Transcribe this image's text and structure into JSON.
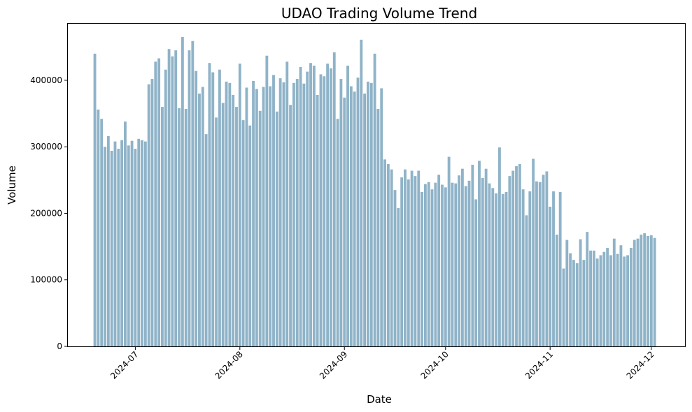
{
  "chart_data": {
    "type": "bar",
    "title": "UDAO Trading Volume Trend",
    "xlabel": "Date",
    "ylabel": "Volume",
    "ylim": [
      0,
      485000
    ],
    "xlim": [
      "2024-06-11",
      "2024-12-11"
    ],
    "y_ticks": [
      0,
      100000,
      200000,
      300000,
      400000
    ],
    "x_ticks": [
      "2024-07-01",
      "2024-08-01",
      "2024-09-01",
      "2024-10-01",
      "2024-11-01",
      "2024-12-01"
    ],
    "x_tick_labels": [
      "2024-07",
      "2024-08",
      "2024-09",
      "2024-10",
      "2024-11",
      "2024-12"
    ],
    "x_tick_rotation": 45,
    "bar_color": "#8fb3c8",
    "grid": false,
    "legend": "none",
    "start_date": "2024-06-19",
    "values": [
      440000,
      356000,
      342000,
      300000,
      316000,
      294000,
      308000,
      297000,
      310000,
      338000,
      302000,
      309000,
      297000,
      312000,
      310000,
      308000,
      394000,
      402000,
      428000,
      433000,
      360000,
      416000,
      447000,
      436000,
      445000,
      358000,
      465000,
      357000,
      445000,
      459000,
      414000,
      380000,
      390000,
      319000,
      426000,
      412000,
      344000,
      416000,
      366000,
      398000,
      396000,
      378000,
      360000,
      425000,
      340000,
      389000,
      332000,
      399000,
      387000,
      354000,
      390000,
      437000,
      391000,
      408000,
      353000,
      403000,
      397000,
      428000,
      363000,
      396000,
      402000,
      420000,
      395000,
      413000,
      426000,
      422000,
      378000,
      409000,
      406000,
      425000,
      418000,
      442000,
      342000,
      402000,
      374000,
      422000,
      391000,
      383000,
      404000,
      461000,
      380000,
      398000,
      396000,
      440000,
      357000,
      388000,
      281000,
      274000,
      266000,
      235000,
      208000,
      254000,
      266000,
      251000,
      264000,
      256000,
      264000,
      232000,
      244000,
      247000,
      236000,
      246000,
      258000,
      243000,
      239000,
      285000,
      246000,
      245000,
      257000,
      267000,
      241000,
      249000,
      273000,
      221000,
      279000,
      253000,
      267000,
      245000,
      238000,
      230000,
      299000,
      229000,
      232000,
      256000,
      264000,
      271000,
      274000,
      236000,
      197000,
      233000,
      282000,
      248000,
      247000,
      258000,
      263000,
      210000,
      233000,
      168000,
      232000,
      117000,
      160000,
      140000,
      130000,
      125000,
      161000,
      130000,
      172000,
      144000,
      144000,
      132000,
      137000,
      142000,
      148000,
      137000,
      162000,
      139000,
      152000,
      135000,
      137000,
      148000,
      160000,
      162000,
      168000,
      170000,
      166000,
      167000,
      163000
    ]
  }
}
